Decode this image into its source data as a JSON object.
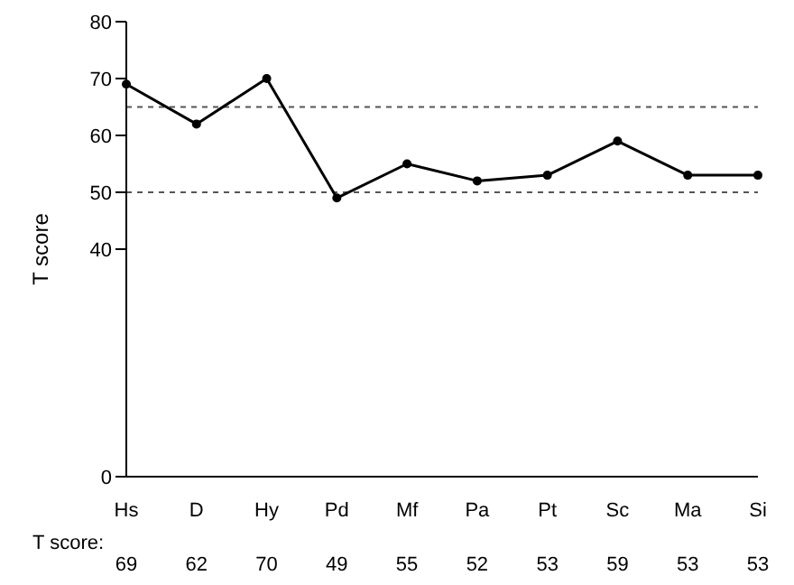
{
  "chart_data": {
    "type": "line",
    "ylabel": "T score",
    "categories": [
      "Hs",
      "D",
      "Hy",
      "Pd",
      "Mf",
      "Pa",
      "Pt",
      "Sc",
      "Ma",
      "Si"
    ],
    "series": [
      {
        "color": "#000000",
        "values": [
          69,
          62,
          70,
          49,
          55,
          52,
          53,
          59,
          53,
          53
        ],
        "value_labels": [
          "69",
          "62",
          "70",
          "49",
          "55",
          "52",
          "53",
          "59",
          "53",
          "53"
        ]
      }
    ],
    "ylim": [
      0,
      80
    ],
    "yticks": [
      0,
      40,
      50,
      60,
      70,
      80
    ],
    "ref_lines": [
      {
        "axis": "y",
        "value": 65,
        "color": "#555555",
        "line_style": "dashed"
      },
      {
        "axis": "y",
        "value": 50,
        "color": "#555555",
        "line_style": "dashed"
      }
    ],
    "annotations": [
      "T score:"
    ],
    "marker": "circle",
    "line_style": "solid",
    "grid": false,
    "legend": false
  }
}
